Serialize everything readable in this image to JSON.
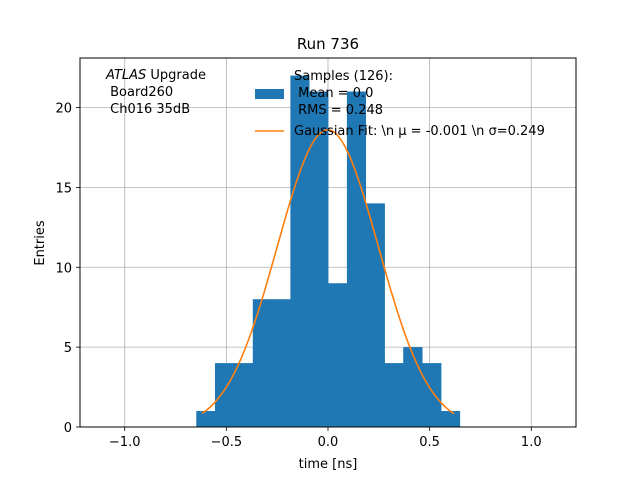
{
  "chart_data": {
    "type": "bar",
    "title": "Run 736",
    "xlabel": "time [ns]",
    "ylabel": "Entries",
    "xlim": [
      -1.22,
      1.22
    ],
    "ylim": [
      0,
      23.1
    ],
    "xticks": [
      -1.0,
      -0.5,
      0.0,
      0.5,
      1.0
    ],
    "xtick_labels": [
      "−1.0",
      "−0.5",
      "0.0",
      "0.5",
      "1.0"
    ],
    "yticks": [
      0,
      5,
      10,
      15,
      20
    ],
    "ytick_labels": [
      "0",
      "5",
      "10",
      "15",
      "20"
    ],
    "grid": true,
    "bar_color": "#1f77b4",
    "fit_color": "#ff7f0e",
    "legend_placement": "top-center",
    "histogram": {
      "bin_edges": [
        -0.648,
        -0.556,
        -0.463,
        -0.37,
        -0.278,
        -0.185,
        -0.093,
        0.0,
        0.093,
        0.185,
        0.278,
        0.37,
        0.463,
        0.556,
        0.648
      ],
      "counts": [
        1,
        4,
        4,
        8,
        8,
        22,
        21,
        9,
        21,
        14,
        4,
        5,
        4,
        1
      ]
    },
    "gaussian_fit": {
      "mu": -0.001,
      "sigma": 0.249,
      "amplitude": 18.6,
      "x_range": [
        -0.62,
        0.62
      ]
    },
    "legend": {
      "samples_label": [
        "Samples (126):",
        " Mean = 0.0",
        " RMS = 0.248"
      ],
      "fit_label": "Gaussian Fit: \\n μ = -0.001 \\n σ=0.249"
    },
    "annotation": {
      "experiment": "ATLAS",
      "experiment_suffix": " Upgrade",
      "board": " Board260",
      "channel": " Ch016 35dB"
    }
  }
}
